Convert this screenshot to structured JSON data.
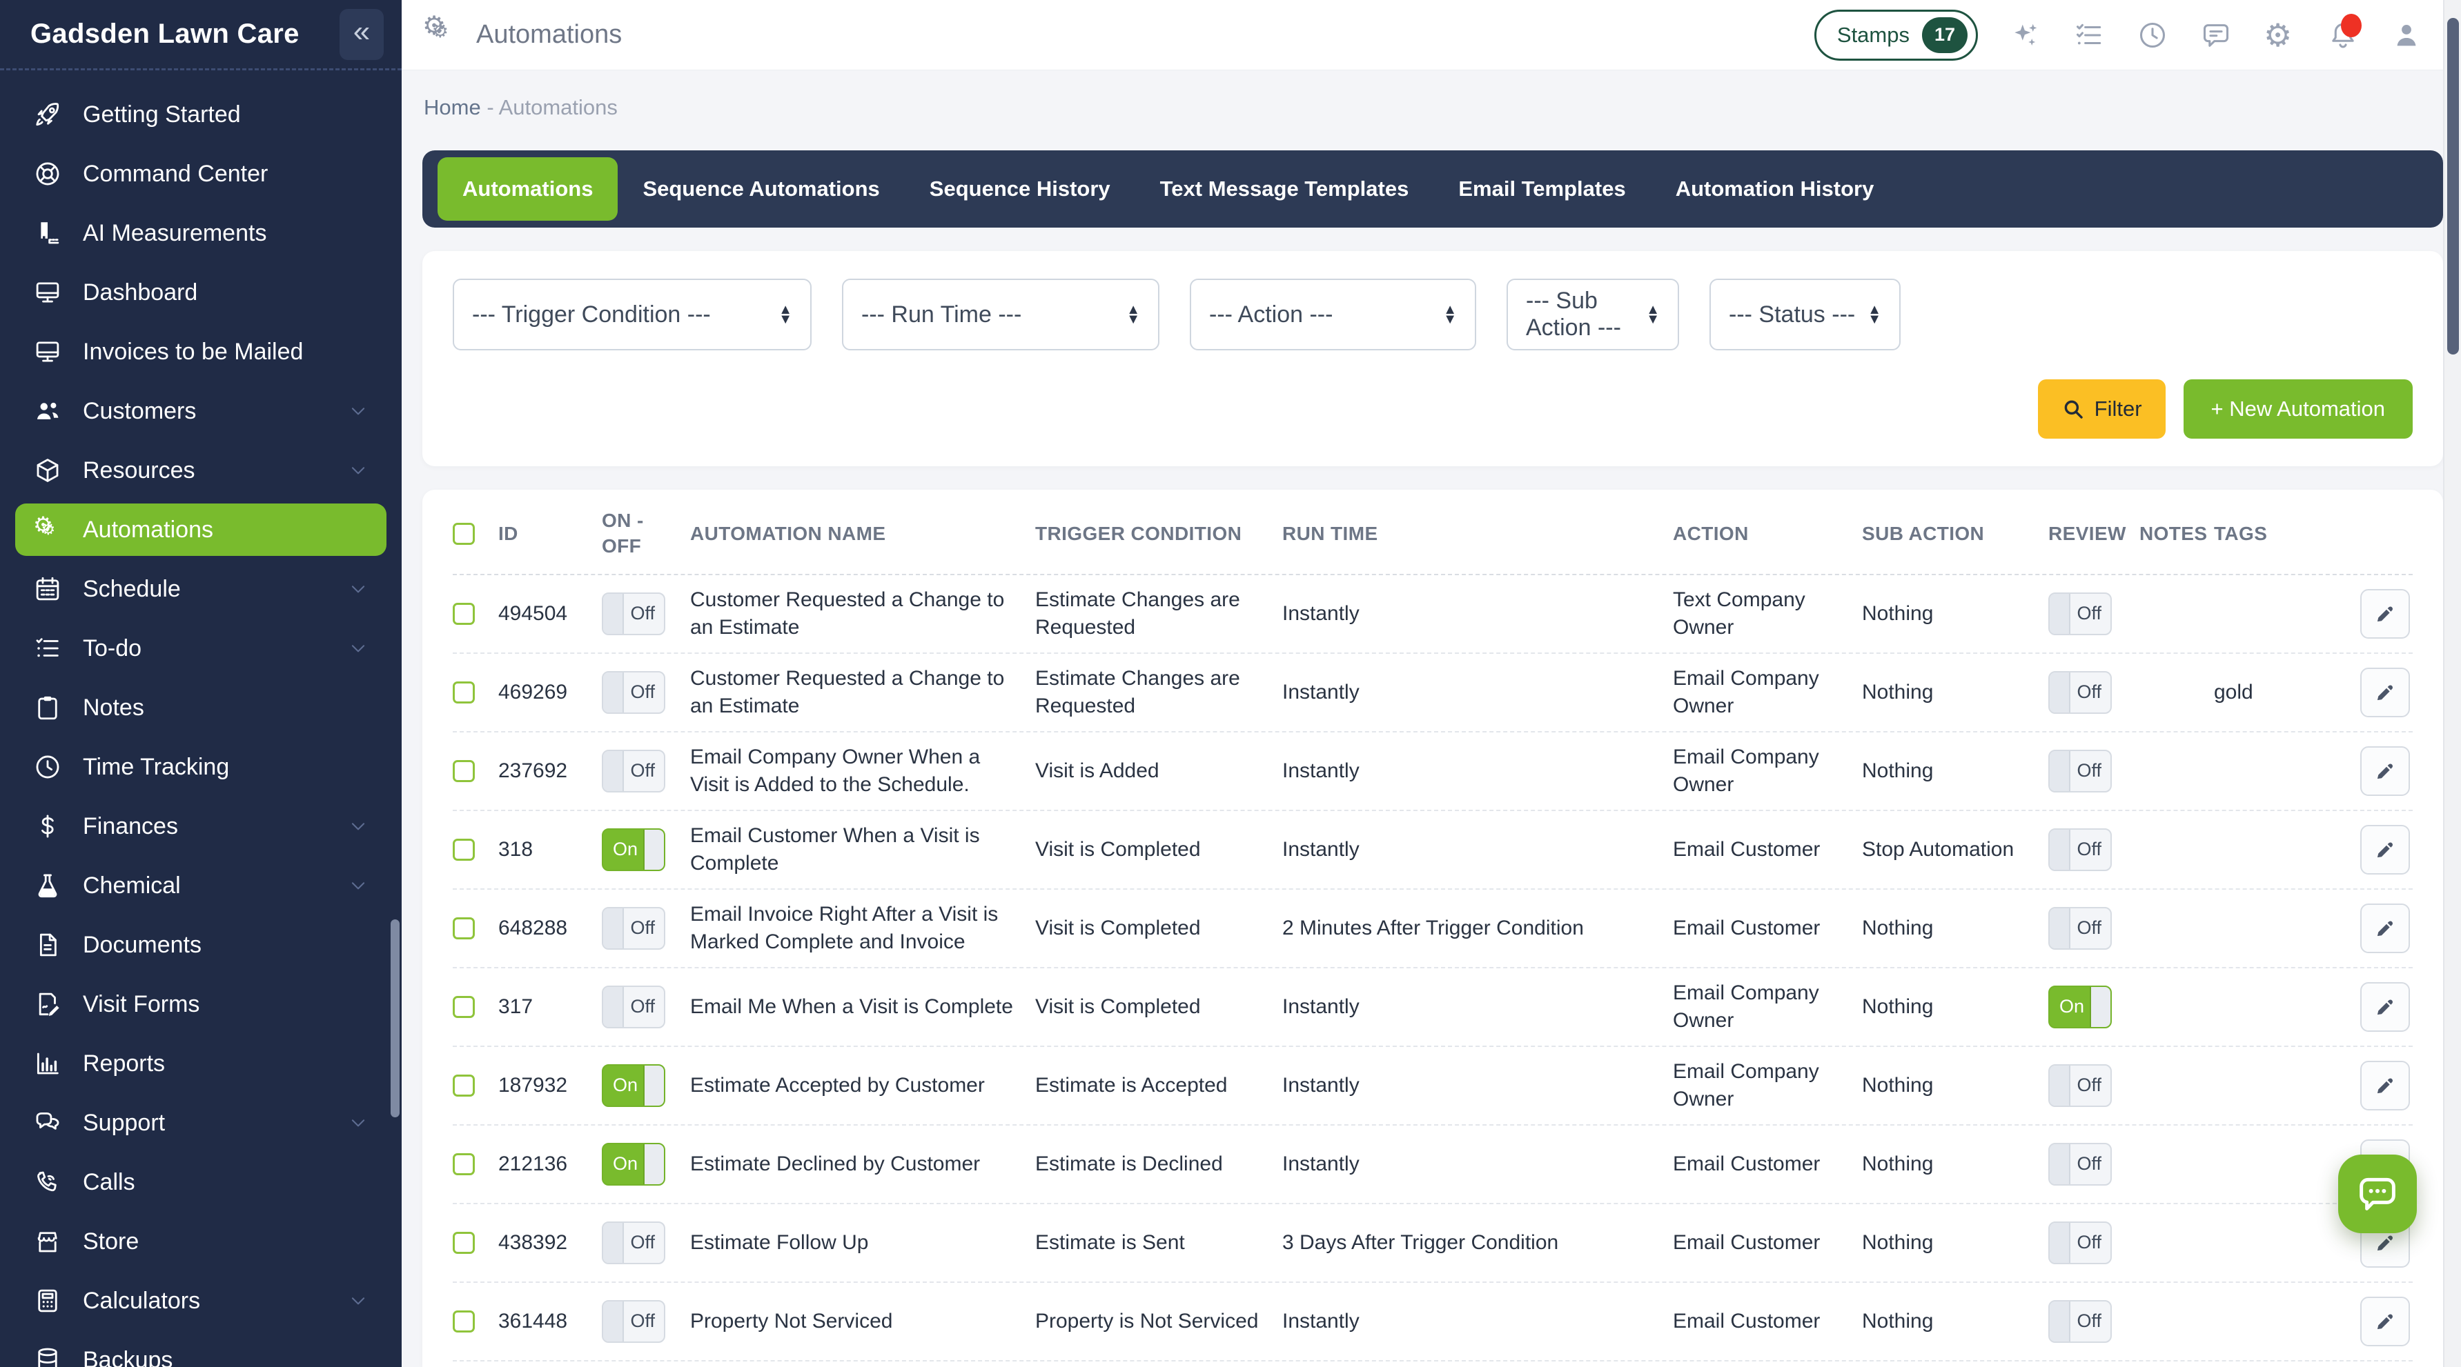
{
  "app": {
    "title": "Gadsden Lawn Care"
  },
  "sidebar": {
    "items": [
      {
        "label": "Getting Started",
        "icon": "rocket-icon",
        "active": false,
        "expandable": false
      },
      {
        "label": "Command Center",
        "icon": "lifebuoy-icon",
        "active": false,
        "expandable": false
      },
      {
        "label": "AI Measurements",
        "icon": "ruler-icon",
        "active": false,
        "expandable": false
      },
      {
        "label": "Dashboard",
        "icon": "monitor-icon",
        "active": false,
        "expandable": false
      },
      {
        "label": "Invoices to be Mailed",
        "icon": "monitor-icon",
        "active": false,
        "expandable": false
      },
      {
        "label": "Customers",
        "icon": "users-icon",
        "active": false,
        "expandable": true
      },
      {
        "label": "Resources",
        "icon": "cube-icon",
        "active": false,
        "expandable": true
      },
      {
        "label": "Automations",
        "icon": "gears-icon",
        "active": true,
        "expandable": false
      },
      {
        "label": "Schedule",
        "icon": "calendar-icon",
        "active": false,
        "expandable": true
      },
      {
        "label": "To-do",
        "icon": "todo-icon",
        "active": false,
        "expandable": true
      },
      {
        "label": "Notes",
        "icon": "clipboard-icon",
        "active": false,
        "expandable": false
      },
      {
        "label": "Time Tracking",
        "icon": "clock-icon",
        "active": false,
        "expandable": false
      },
      {
        "label": "Finances",
        "icon": "dollar-icon",
        "active": false,
        "expandable": true
      },
      {
        "label": "Chemical",
        "icon": "flask-icon",
        "active": false,
        "expandable": true
      },
      {
        "label": "Documents",
        "icon": "document-icon",
        "active": false,
        "expandable": false
      },
      {
        "label": "Visit Forms",
        "icon": "form-pen-icon",
        "active": false,
        "expandable": false
      },
      {
        "label": "Reports",
        "icon": "chart-bars-icon",
        "active": false,
        "expandable": false
      },
      {
        "label": "Support",
        "icon": "chat-bubbles-icon",
        "active": false,
        "expandable": true
      },
      {
        "label": "Calls",
        "icon": "phone-icon",
        "active": false,
        "expandable": false
      },
      {
        "label": "Store",
        "icon": "storefront-icon",
        "active": false,
        "expandable": false
      },
      {
        "label": "Calculators",
        "icon": "calculator-icon",
        "active": false,
        "expandable": true
      },
      {
        "label": "Backups",
        "icon": "database-icon",
        "active": false,
        "expandable": false
      }
    ]
  },
  "topbar": {
    "title": "Automations",
    "stamps_label": "Stamps",
    "stamps_count": "17",
    "icons": [
      {
        "name": "sparkles-icon",
        "badge": false
      },
      {
        "name": "checklist-icon",
        "badge": false
      },
      {
        "name": "clock-icon",
        "badge": false
      },
      {
        "name": "comment-icon",
        "badge": false
      },
      {
        "name": "gear-icon",
        "badge": false
      },
      {
        "name": "bell-icon",
        "badge": true
      },
      {
        "name": "user-icon",
        "badge": false
      }
    ]
  },
  "breadcrumb": {
    "home": "Home",
    "separator": "-",
    "current": "Automations"
  },
  "tabs": [
    {
      "label": "Automations",
      "active": true
    },
    {
      "label": "Sequence Automations",
      "active": false
    },
    {
      "label": "Sequence History",
      "active": false
    },
    {
      "label": "Text Message Templates",
      "active": false
    },
    {
      "label": "Email Templates",
      "active": false
    },
    {
      "label": "Automation History",
      "active": false
    }
  ],
  "filters": {
    "selects": [
      {
        "value": "--- Trigger Condition ---"
      },
      {
        "value": "--- Run Time ---"
      },
      {
        "value": "--- Action ---"
      },
      {
        "value": "--- Sub Action ---"
      },
      {
        "value": "--- Status ---"
      }
    ],
    "filter_button": "Filter",
    "new_button": "+ New Automation"
  },
  "table": {
    "headers": {
      "id": "ID",
      "on_off": "ON - OFF",
      "name": "AUTOMATION NAME",
      "trigger": "TRIGGER CONDITION",
      "run_time": "RUN TIME",
      "action": "ACTION",
      "sub_action": "SUB ACTION",
      "review": "REVIEW",
      "notes": "NOTES",
      "tags": "TAGS"
    },
    "rows": [
      {
        "id": "494504",
        "on_off": "Off",
        "name": "Customer Requested a Change to an Estimate",
        "trigger": "Estimate Changes are Requested",
        "run_time": "Instantly",
        "action": "Text Company Owner",
        "sub_action": "Nothing",
        "review": "Off",
        "notes": "",
        "tags": ""
      },
      {
        "id": "469269",
        "on_off": "Off",
        "name": "Customer Requested a Change to an Estimate",
        "trigger": "Estimate Changes are Requested",
        "run_time": "Instantly",
        "action": "Email Company Owner",
        "sub_action": "Nothing",
        "review": "Off",
        "notes": "",
        "tags": "gold"
      },
      {
        "id": "237692",
        "on_off": "Off",
        "name": "Email Company Owner When a Visit is Added to the Schedule.",
        "trigger": "Visit is Added",
        "run_time": "Instantly",
        "action": "Email Company Owner",
        "sub_action": "Nothing",
        "review": "Off",
        "notes": "",
        "tags": ""
      },
      {
        "id": "318",
        "on_off": "On",
        "name": "Email Customer When a Visit is Complete",
        "trigger": "Visit is Completed",
        "run_time": "Instantly",
        "action": "Email Customer",
        "sub_action": "Stop Automation",
        "review": "Off",
        "notes": "",
        "tags": ""
      },
      {
        "id": "648288",
        "on_off": "Off",
        "name": "Email Invoice Right After a Visit is Marked Complete and Invoice",
        "trigger": "Visit is Completed",
        "run_time": "2 Minutes After Trigger Condition",
        "action": "Email Customer",
        "sub_action": "Nothing",
        "review": "Off",
        "notes": "",
        "tags": ""
      },
      {
        "id": "317",
        "on_off": "Off",
        "name": "Email Me When a Visit is Complete",
        "trigger": "Visit is Completed",
        "run_time": "Instantly",
        "action": "Email Company Owner",
        "sub_action": "Nothing",
        "review": "On",
        "notes": "",
        "tags": ""
      },
      {
        "id": "187932",
        "on_off": "On",
        "name": "Estimate Accepted by Customer",
        "trigger": "Estimate is Accepted",
        "run_time": "Instantly",
        "action": "Email Company Owner",
        "sub_action": "Nothing",
        "review": "Off",
        "notes": "",
        "tags": ""
      },
      {
        "id": "212136",
        "on_off": "On",
        "name": "Estimate Declined by Customer",
        "trigger": "Estimate is Declined",
        "run_time": "Instantly",
        "action": "Email Customer",
        "sub_action": "Nothing",
        "review": "Off",
        "notes": "",
        "tags": ""
      },
      {
        "id": "438392",
        "on_off": "Off",
        "name": "Estimate Follow Up",
        "trigger": "Estimate is Sent",
        "run_time": "3 Days After Trigger Condition",
        "action": "Email Customer",
        "sub_action": "Nothing",
        "review": "Off",
        "notes": "",
        "tags": ""
      },
      {
        "id": "361448",
        "on_off": "Off",
        "name": "Property Not Serviced",
        "trigger": "Property is Not Serviced",
        "run_time": "Instantly",
        "action": "Email Customer",
        "sub_action": "Nothing",
        "review": "Off",
        "notes": "",
        "tags": ""
      }
    ]
  },
  "colors": {
    "accent_green": "#79bb2d",
    "sidebar_navy": "#202b46",
    "tabbar_navy": "#2d3a55",
    "filter_yellow": "#fbbf24",
    "stamps_green": "#1e5340",
    "notification_red": "#ee3124"
  }
}
